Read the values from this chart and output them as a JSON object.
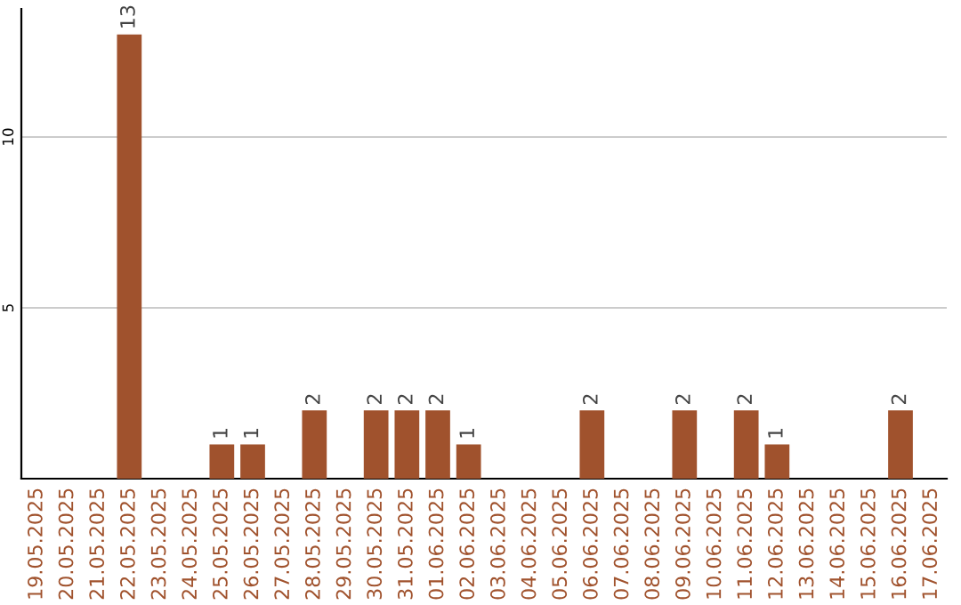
{
  "chart_data": {
    "type": "bar",
    "categories": [
      "19.05.2025",
      "20.05.2025",
      "21.05.2025",
      "22.05.2025",
      "23.05.2025",
      "24.05.2025",
      "25.05.2025",
      "26.05.2025",
      "27.05.2025",
      "28.05.2025",
      "29.05.2025",
      "30.05.2025",
      "31.05.2025",
      "01.06.2025",
      "02.06.2025",
      "03.06.2025",
      "04.06.2025",
      "05.06.2025",
      "06.06.2025",
      "07.06.2025",
      "08.06.2025",
      "09.06.2025",
      "10.06.2025",
      "11.06.2025",
      "12.06.2025",
      "13.06.2025",
      "14.06.2025",
      "15.06.2025",
      "16.06.2025",
      "17.06.2025"
    ],
    "values": [
      0,
      0,
      0,
      13,
      0,
      0,
      1,
      1,
      0,
      2,
      0,
      2,
      2,
      2,
      1,
      0,
      0,
      0,
      2,
      0,
      0,
      2,
      0,
      2,
      1,
      0,
      0,
      0,
      2,
      0
    ],
    "value_labels": [
      null,
      null,
      null,
      "13",
      null,
      null,
      "1",
      "1",
      null,
      "2",
      null,
      "2",
      "2",
      "2",
      "1",
      null,
      null,
      null,
      "2",
      null,
      null,
      "2",
      null,
      "2",
      "1",
      null,
      null,
      null,
      "2",
      null
    ],
    "color": "#a0522d",
    "ylim": [
      0,
      13.75
    ],
    "yticks": [
      5,
      10
    ],
    "grid": "y",
    "legend": false
  }
}
